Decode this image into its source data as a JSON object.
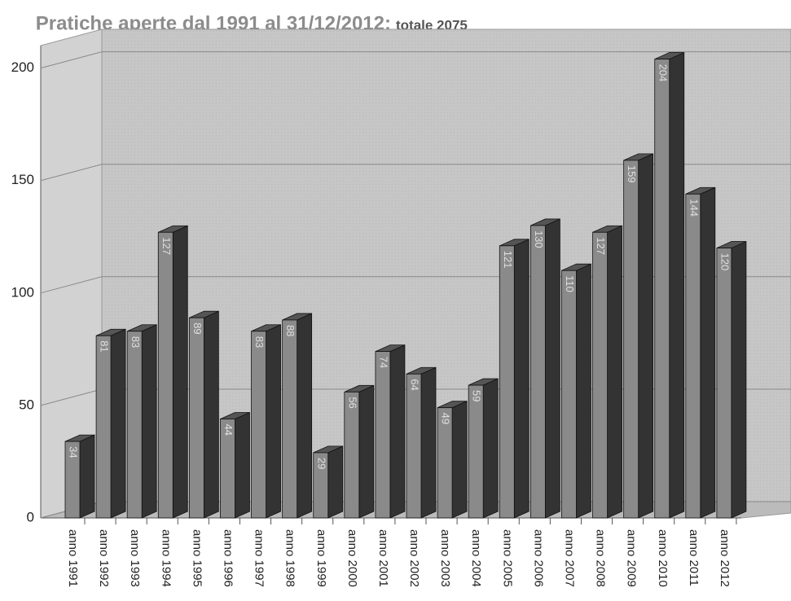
{
  "chart_data": {
    "type": "bar3d",
    "title": "Pratiche aperte dal 1991 al 31/12/2012:",
    "subtitle": "totale 2075",
    "categories": [
      "anno 1991",
      "anno 1992",
      "anno 1993",
      "anno 1994",
      "anno 1995",
      "anno 1996",
      "anno 1997",
      "anno 1998",
      "anno 1999",
      "anno 2000",
      "anno 2001",
      "anno 2002",
      "anno 2003",
      "anno 2004",
      "anno 2005",
      "anno 2006",
      "anno 2007",
      "anno 2008",
      "anno 2009",
      "anno 2010",
      "anno 2011",
      "anno 2012"
    ],
    "values": [
      34,
      81,
      83,
      127,
      89,
      44,
      83,
      88,
      29,
      56,
      74,
      64,
      49,
      59,
      121,
      130,
      110,
      127,
      159,
      204,
      144,
      120
    ],
    "color": "#8a8a8a",
    "ylim": [
      0,
      210
    ],
    "yticks": [
      0,
      50,
      100,
      150,
      200
    ],
    "grid": true,
    "data_labels": true
  }
}
